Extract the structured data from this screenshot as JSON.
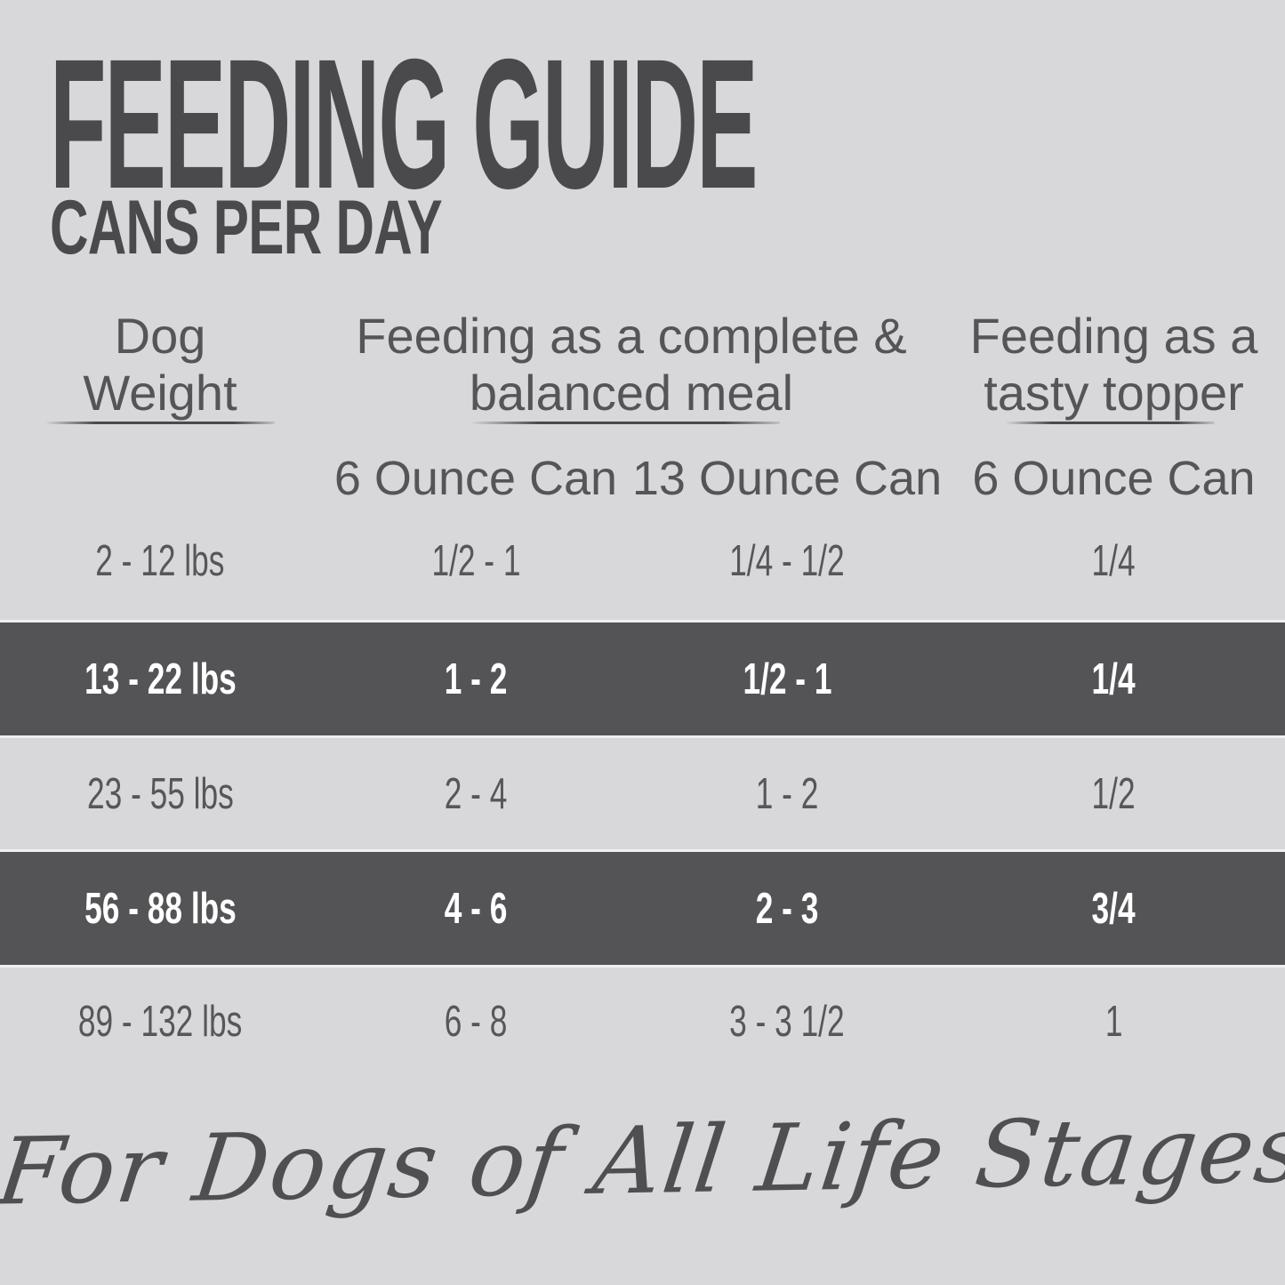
{
  "header": {
    "title": "FEEDING GUIDE",
    "subtitle": "CANS PER DAY"
  },
  "table": {
    "columns": {
      "weight": {
        "line1": "Dog",
        "line2": "Weight"
      },
      "meal_group": {
        "line1": "Feeding as a complete &",
        "line2": "balanced meal"
      },
      "topper_group": {
        "line1": "Feeding as a",
        "line2": "tasty topper"
      }
    },
    "subheaders": [
      "6 Ounce Can",
      "13 Ounce Can",
      "6 Ounce Can"
    ],
    "rows": [
      {
        "weight": "2 - 12 lbs",
        "meal_6oz": "1/2 - 1",
        "meal_13oz": "1/4 - 1/2",
        "topper_6oz": "1/4",
        "highlighted": false
      },
      {
        "weight": "13 - 22 lbs",
        "meal_6oz": "1 - 2",
        "meal_13oz": "1/2 - 1",
        "topper_6oz": "1/4",
        "highlighted": true
      },
      {
        "weight": "23 - 55 lbs",
        "meal_6oz": "2 - 4",
        "meal_13oz": "1 - 2",
        "topper_6oz": "1/2",
        "highlighted": false
      },
      {
        "weight": "56 - 88 lbs",
        "meal_6oz": "4 - 6",
        "meal_13oz": "2 - 3",
        "topper_6oz": "3/4",
        "highlighted": true
      },
      {
        "weight": "89 - 132 lbs",
        "meal_6oz": "6 - 8",
        "meal_13oz": "3 - 3 1/2",
        "topper_6oz": "1",
        "highlighted": false
      }
    ]
  },
  "footer": {
    "tagline": "For Dogs of All Life Stages"
  },
  "colors": {
    "background": "#d8d8da",
    "highlight_row_background": "#545456",
    "highlight_row_text": "#ffffff",
    "body_text": "#57575a",
    "title_text": "#4a4a4c"
  }
}
